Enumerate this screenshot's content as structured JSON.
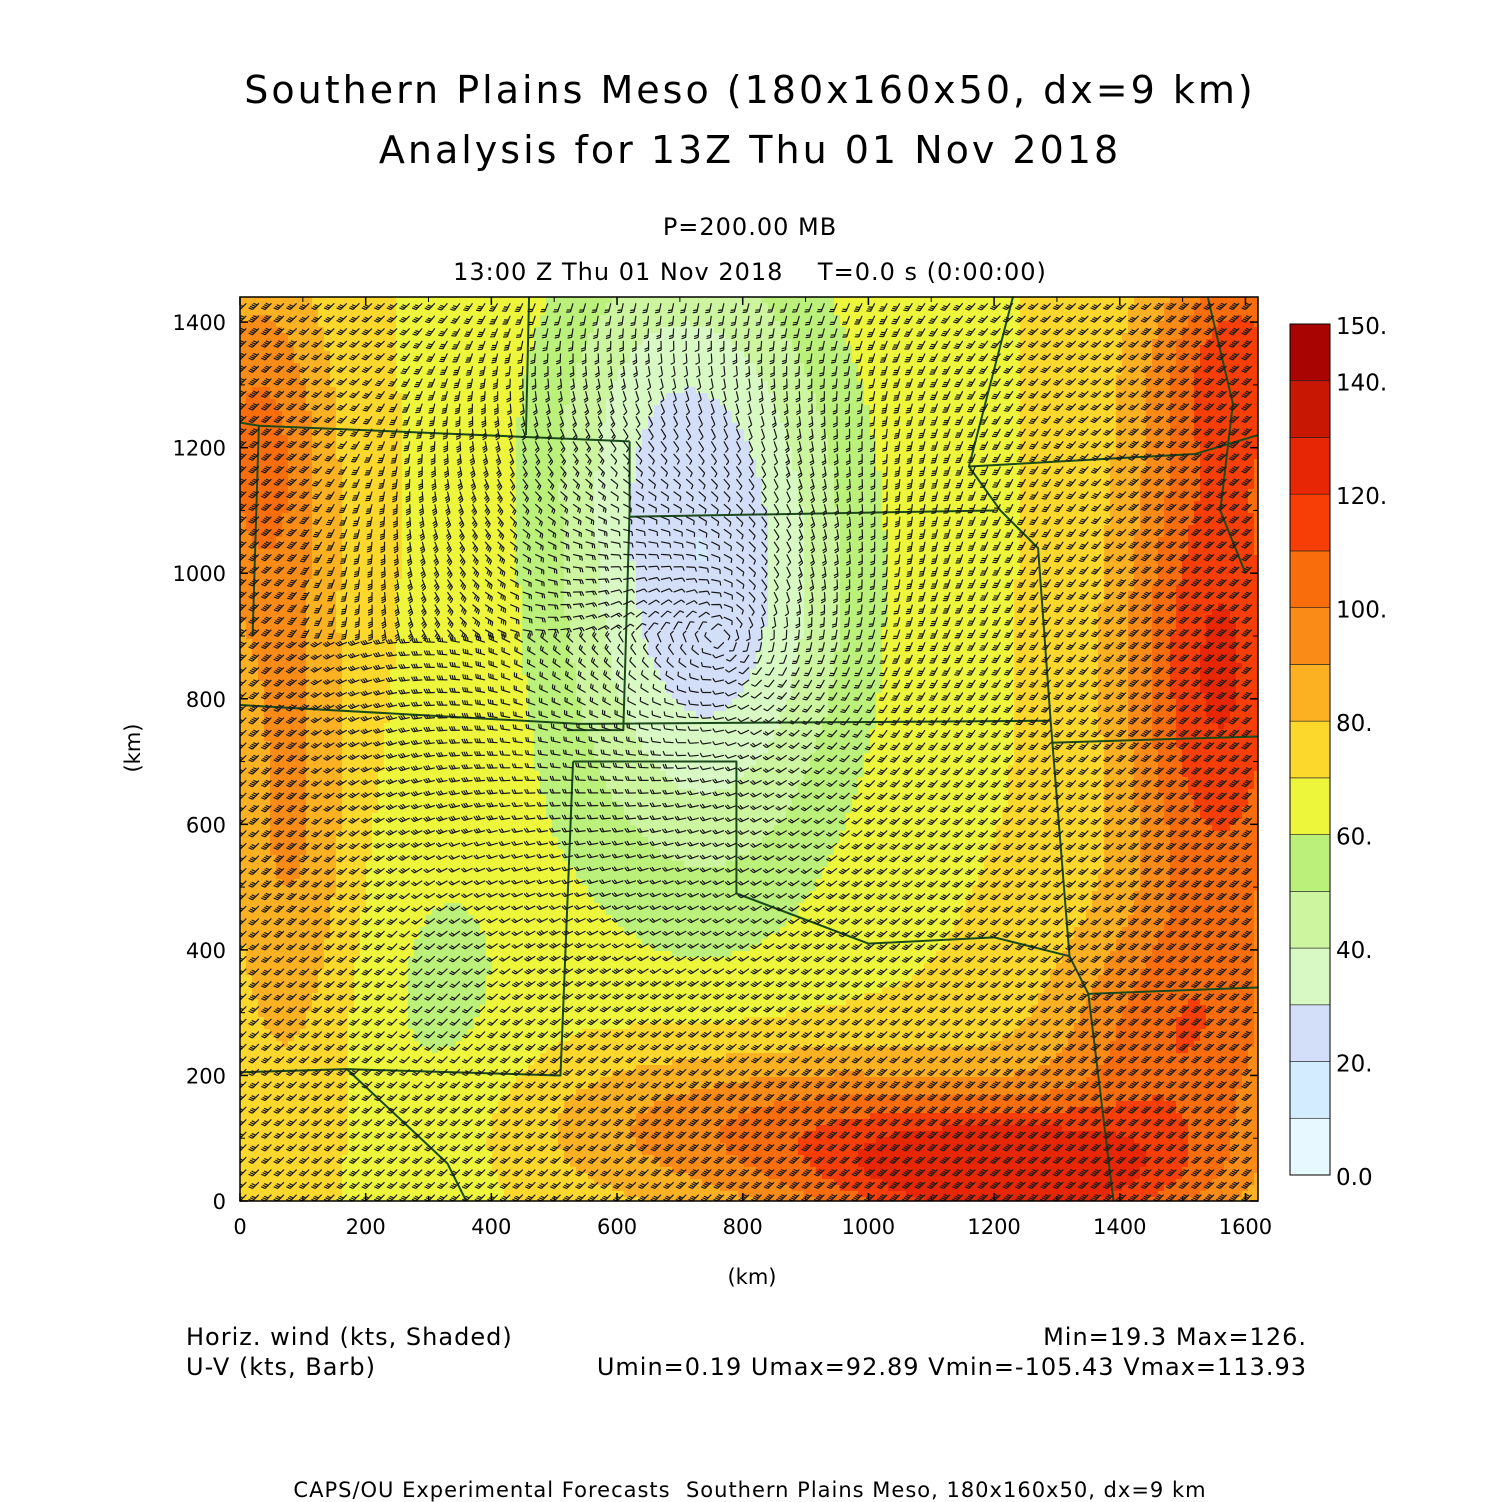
{
  "header": {
    "title_line1": "Southern Plains Meso (180x160x50, dx=9 km)",
    "title_line2": "Analysis for 13Z Thu 01 Nov 2018",
    "level": "P=200.00 MB",
    "time": "13:00 Z Thu 01 Nov 2018    T=0.0 s (0:00:00)"
  },
  "footer": {
    "shaded_label": "Horiz. wind (kts, Shaded)",
    "barb_label": "U-V (kts, Barb)",
    "minmax": "Min=19.3 Max=126.",
    "uv_stats": "Umin=0.19 Umax=92.89 Vmin=-105.43 Vmax=113.93",
    "credit": "CAPS/OU Experimental Forecasts  Southern Plains Meso, 180x160x50, dx=9 km"
  },
  "chart_data": {
    "type": "heatmap",
    "xlabel": "(km)",
    "ylabel": "(km)",
    "xlim": [
      0,
      1620
    ],
    "ylim": [
      0,
      1440
    ],
    "x_ticks": [
      0,
      200,
      400,
      600,
      800,
      1000,
      1200,
      1400,
      1600
    ],
    "y_ticks": [
      0,
      200,
      400,
      600,
      800,
      1000,
      1200,
      1400
    ],
    "colorbar": {
      "levels": [
        0,
        10,
        20,
        30,
        40,
        50,
        60,
        70,
        80,
        90,
        100,
        110,
        120,
        130,
        140,
        150
      ],
      "tick_labels": [
        "0.0",
        "20.",
        "40.",
        "60.",
        "80.",
        "100.",
        "120.",
        "140.",
        "150."
      ],
      "tick_values": [
        0,
        20,
        40,
        60,
        80,
        100,
        120,
        140,
        150
      ],
      "colors": [
        "#e8f8ff",
        "#d4ecff",
        "#d3def8",
        "#d8f8c4",
        "#cdf5a0",
        "#bbf07a",
        "#eef63c",
        "#fcd72c",
        "#fbb121",
        "#fb8b17",
        "#fa6d0c",
        "#f73e07",
        "#e72605",
        "#c81804",
        "#a80502"
      ]
    },
    "speed_field_centers": [
      {
        "x": 760,
        "y": 940,
        "value": 22
      },
      {
        "x": 1560,
        "y": 850,
        "value": 120
      },
      {
        "x": 1230,
        "y": 40,
        "value": 126
      },
      {
        "x": 50,
        "y": 1250,
        "value": 100
      }
    ],
    "border_color": "#1a4a1a",
    "barb_color": "#1a1a1a"
  }
}
